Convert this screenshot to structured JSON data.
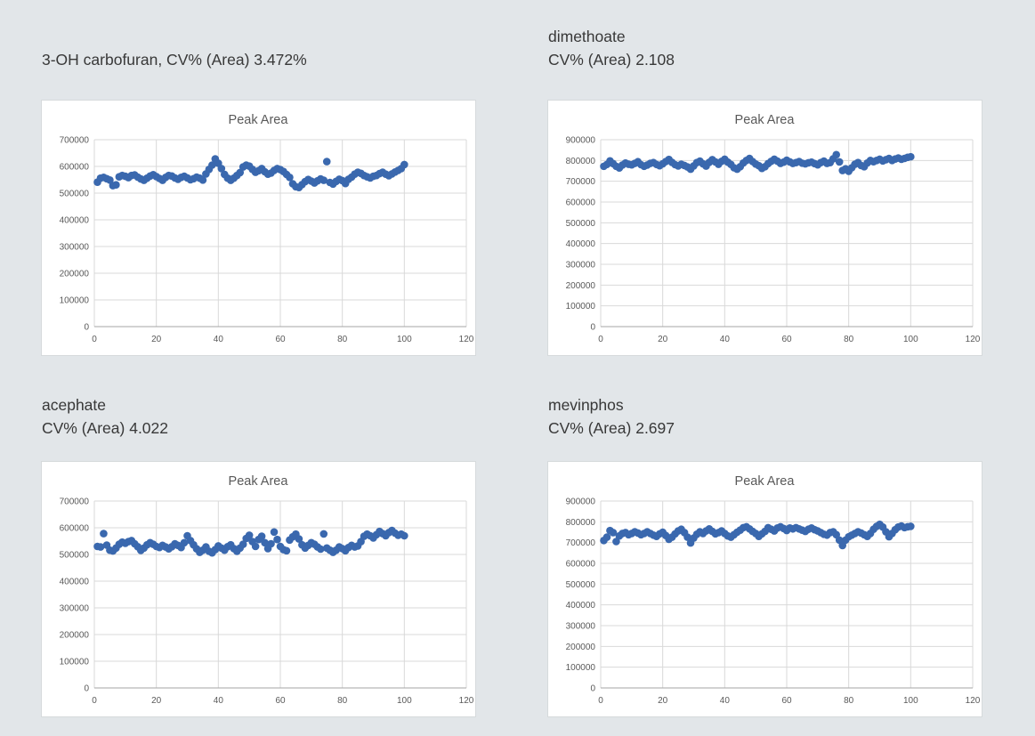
{
  "page": {
    "background": "#e2e6e9",
    "card_background": "#ffffff",
    "card_border": "#d6dadc",
    "gridline_color": "#d9d9d9",
    "axis_color": "#a6a6a6",
    "marker_color": "#3a68ae",
    "label_color": "#595959",
    "heading_color": "#383838"
  },
  "chart_data": [
    {
      "type": "scatter",
      "heading_line1": "3-OH carbofuran, CV% (Area) 3.472%",
      "heading_line2": "",
      "title": "Peak Area",
      "xlabel": "",
      "ylabel": "",
      "xlim": [
        0,
        120
      ],
      "ylim": [
        0,
        700000
      ],
      "xticks": [
        0,
        20,
        40,
        60,
        80,
        100,
        120
      ],
      "yticks": [
        0,
        100000,
        200000,
        300000,
        400000,
        500000,
        600000,
        700000
      ],
      "grid": true,
      "legend": "none",
      "x_first": 1,
      "values": [
        541000,
        556000,
        559000,
        554000,
        549000,
        528000,
        531000,
        561000,
        566000,
        563000,
        558000,
        566000,
        568000,
        560000,
        553000,
        548000,
        556000,
        564000,
        569000,
        562000,
        555000,
        548000,
        559000,
        566000,
        564000,
        557000,
        552000,
        559000,
        563000,
        557000,
        550000,
        554000,
        560000,
        556000,
        549000,
        572000,
        589000,
        605000,
        628000,
        612000,
        592000,
        570000,
        556000,
        548000,
        556000,
        566000,
        577000,
        598000,
        605000,
        601000,
        589000,
        578000,
        584000,
        592000,
        580000,
        571000,
        575000,
        585000,
        592000,
        588000,
        581000,
        570000,
        559000,
        535000,
        524000,
        521000,
        532000,
        543000,
        551000,
        545000,
        538000,
        546000,
        553000,
        548000,
        618000,
        540000,
        534000,
        544000,
        552000,
        547000,
        536000,
        552000,
        560000,
        571000,
        578000,
        574000,
        566000,
        561000,
        557000,
        563000,
        566000,
        573000,
        578000,
        571000,
        565000,
        572000,
        579000,
        585000,
        592000,
        607000
      ]
    },
    {
      "type": "scatter",
      "heading_line1": "dimethoate",
      "heading_line2": "CV% (Area) 2.108",
      "title": "Peak Area",
      "xlabel": "",
      "ylabel": "",
      "xlim": [
        0,
        120
      ],
      "ylim": [
        0,
        900000
      ],
      "xticks": [
        0,
        20,
        40,
        60,
        80,
        100,
        120
      ],
      "yticks": [
        0,
        100000,
        200000,
        300000,
        400000,
        500000,
        600000,
        700000,
        800000,
        900000
      ],
      "grid": true,
      "legend": "none",
      "x_first": 1,
      "values": [
        772000,
        781000,
        798000,
        785000,
        772000,
        764000,
        778000,
        788000,
        782000,
        779000,
        786000,
        794000,
        780000,
        772000,
        778000,
        786000,
        790000,
        781000,
        775000,
        784000,
        795000,
        805000,
        791000,
        780000,
        774000,
        782000,
        776000,
        769000,
        758000,
        774000,
        790000,
        797000,
        784000,
        773000,
        791000,
        804000,
        793000,
        782000,
        796000,
        806000,
        792000,
        781000,
        765000,
        758000,
        770000,
        788000,
        800000,
        810000,
        795000,
        783000,
        775000,
        762000,
        770000,
        785000,
        796000,
        806000,
        797000,
        786000,
        792000,
        801000,
        793000,
        786000,
        790000,
        795000,
        787000,
        784000,
        789000,
        792000,
        785000,
        779000,
        790000,
        797000,
        786000,
        790000,
        808000,
        828000,
        793000,
        752000,
        760000,
        748000,
        765000,
        782000,
        790000,
        776000,
        770000,
        788000,
        800000,
        794000,
        800000,
        806000,
        798000,
        804000,
        810000,
        800000,
        807000,
        812000,
        806000,
        810000,
        815000,
        818000
      ]
    },
    {
      "type": "scatter",
      "heading_line1": "acephate",
      "heading_line2": "CV% (Area) 4.022",
      "title": "Peak Area",
      "xlabel": "",
      "ylabel": "",
      "xlim": [
        0,
        120
      ],
      "ylim": [
        0,
        700000
      ],
      "xticks": [
        0,
        20,
        40,
        60,
        80,
        100,
        120
      ],
      "yticks": [
        0,
        100000,
        200000,
        300000,
        400000,
        500000,
        600000,
        700000
      ],
      "grid": true,
      "legend": "none",
      "x_first": 1,
      "values": [
        530000,
        528000,
        578000,
        535000,
        516000,
        513000,
        524000,
        538000,
        546000,
        542000,
        548000,
        552000,
        540000,
        529000,
        515000,
        524000,
        536000,
        544000,
        538000,
        530000,
        526000,
        534000,
        528000,
        521000,
        529000,
        540000,
        534000,
        526000,
        544000,
        570000,
        552000,
        536000,
        521000,
        508000,
        516000,
        528000,
        512000,
        506000,
        518000,
        532000,
        524000,
        516000,
        529000,
        536000,
        522000,
        512000,
        524000,
        538000,
        560000,
        572000,
        548000,
        530000,
        556000,
        568000,
        544000,
        522000,
        540000,
        584000,
        556000,
        530000,
        518000,
        514000,
        554000,
        566000,
        576000,
        558000,
        536000,
        524000,
        534000,
        544000,
        538000,
        528000,
        520000,
        577000,
        524000,
        516000,
        508000,
        516000,
        528000,
        522000,
        514000,
        526000,
        534000,
        528000,
        532000,
        548000,
        568000,
        576000,
        570000,
        562000,
        574000,
        586000,
        578000,
        570000,
        582000,
        590000,
        580000,
        572000,
        576000,
        570000
      ]
    },
    {
      "type": "scatter",
      "heading_line1": "mevinphos",
      "heading_line2": "CV% (Area) 2.697",
      "title": "Peak Area",
      "xlabel": "",
      "ylabel": "",
      "xlim": [
        0,
        120
      ],
      "ylim": [
        0,
        900000
      ],
      "xticks": [
        0,
        20,
        40,
        60,
        80,
        100,
        120
      ],
      "yticks": [
        0,
        100000,
        200000,
        300000,
        400000,
        500000,
        600000,
        700000,
        800000,
        900000
      ],
      "grid": true,
      "legend": "none",
      "x_first": 1,
      "values": [
        710000,
        726000,
        758000,
        748000,
        705000,
        732000,
        744000,
        748000,
        738000,
        744000,
        752000,
        746000,
        738000,
        744000,
        752000,
        744000,
        736000,
        730000,
        742000,
        750000,
        734000,
        716000,
        726000,
        742000,
        756000,
        764000,
        748000,
        726000,
        698000,
        722000,
        740000,
        752000,
        744000,
        756000,
        766000,
        754000,
        742000,
        748000,
        756000,
        744000,
        732000,
        726000,
        738000,
        750000,
        760000,
        772000,
        776000,
        766000,
        754000,
        744000,
        730000,
        742000,
        754000,
        772000,
        764000,
        756000,
        770000,
        776000,
        768000,
        758000,
        770000,
        766000,
        772000,
        766000,
        760000,
        754000,
        764000,
        770000,
        762000,
        756000,
        748000,
        740000,
        736000,
        748000,
        752000,
        738000,
        712000,
        686000,
        712000,
        728000,
        736000,
        744000,
        752000,
        746000,
        738000,
        730000,
        744000,
        764000,
        778000,
        788000,
        775000,
        752000,
        728000,
        744000,
        762000,
        775000,
        780000,
        772000,
        776000,
        778000
      ]
    }
  ]
}
